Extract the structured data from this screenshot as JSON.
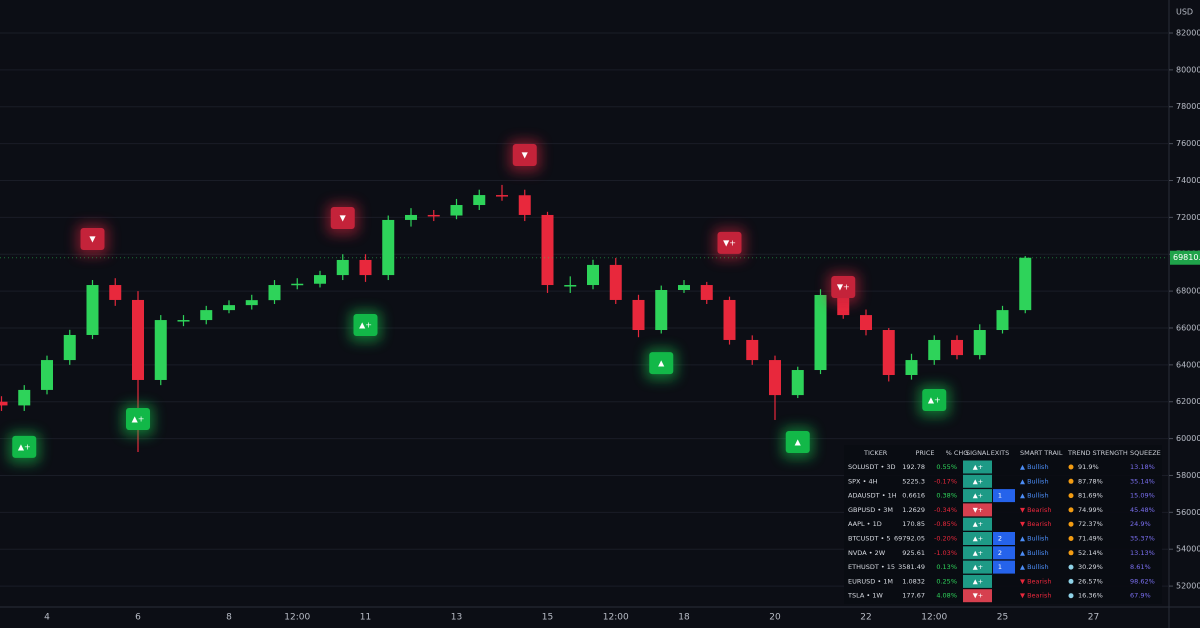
{
  "chart_data": {
    "type": "candlestick",
    "currency": "USD",
    "categories": [
      null,
      null,
      "4",
      null,
      null,
      null,
      "6",
      null,
      null,
      null,
      "8",
      null,
      null,
      "12:00",
      null,
      null,
      "11",
      null,
      null,
      null,
      "13",
      null,
      null,
      null,
      "15",
      null,
      null,
      "12:00",
      null,
      null,
      "18",
      null,
      null,
      null,
      "20",
      null,
      null,
      null,
      "22",
      null,
      null,
      "12:00",
      null,
      null,
      "25",
      null,
      null,
      null,
      "27"
    ],
    "open": [
      62000,
      61800,
      62640,
      64260,
      65620,
      68330,
      67520,
      63180,
      66430,
      66430,
      66970,
      67240,
      67510,
      68330,
      68400,
      68870,
      69690,
      68870,
      71860,
      72130,
      72100,
      72670,
      73210,
      73200,
      72130,
      68330,
      68330,
      69420,
      67520,
      65890,
      68060,
      68330,
      67520,
      65350,
      64260,
      62360,
      63720,
      67790,
      66700,
      65890,
      63450,
      64260,
      65350,
      64530,
      65890,
      66970,
      null,
      null,
      null
    ],
    "high": [
      62300,
      62900,
      64500,
      65900,
      68600,
      68700,
      68000,
      66700,
      66700,
      67200,
      67500,
      67800,
      68600,
      68700,
      69100,
      70000,
      70000,
      72100,
      72500,
      72400,
      73000,
      73500,
      73760,
      73500,
      72300,
      68800,
      69700,
      69800,
      67800,
      68300,
      68600,
      68500,
      67700,
      65600,
      64500,
      63900,
      68100,
      68000,
      67000,
      66000,
      64600,
      65600,
      65600,
      66200,
      67200,
      69900,
      null,
      null,
      null
    ],
    "low": [
      61500,
      61500,
      62400,
      64000,
      65400,
      67200,
      59270,
      62900,
      66100,
      66200,
      66800,
      67000,
      67300,
      68100,
      68200,
      68600,
      68500,
      68600,
      71500,
      71800,
      71900,
      72400,
      72900,
      71800,
      67900,
      67900,
      68100,
      67300,
      65500,
      65700,
      67900,
      67300,
      65100,
      64000,
      61010,
      62200,
      63500,
      66500,
      65600,
      63100,
      63200,
      64000,
      64300,
      64300,
      65700,
      66800,
      null,
      null,
      null
    ],
    "close": [
      61800,
      62640,
      64260,
      65620,
      68330,
      67520,
      63180,
      66430,
      66430,
      66970,
      67240,
      67510,
      68330,
      68400,
      68870,
      69690,
      68870,
      71860,
      72130,
      72100,
      72670,
      73210,
      73200,
      72130,
      68330,
      68330,
      69420,
      67520,
      65890,
      68060,
      68330,
      67520,
      65350,
      64260,
      62360,
      63720,
      67790,
      66700,
      65890,
      63450,
      64260,
      65350,
      64530,
      65890,
      66970,
      69810,
      null,
      null,
      null
    ],
    "up_color": "#2ed35a",
    "down_color": "#e8283c",
    "ylim": [
      50920,
      83790
    ],
    "yticks": [
      {
        "value": 52000,
        "label": "52000.0"
      },
      {
        "value": 54000,
        "label": "54000.0"
      },
      {
        "value": 56000,
        "label": "56000.0"
      },
      {
        "value": 58000,
        "label": "58000.0"
      },
      {
        "value": 60000,
        "label": "60000.0"
      },
      {
        "value": 62000,
        "label": "62000.0"
      },
      {
        "value": 64000,
        "label": "64000.0"
      },
      {
        "value": 66000,
        "label": "66000.0"
      },
      {
        "value": 68000,
        "label": "68000.0"
      },
      {
        "value": 70000,
        "label": "70000.0"
      },
      {
        "value": 72000,
        "label": "72000.0"
      },
      {
        "value": 74000,
        "label": "74000.0"
      },
      {
        "value": 76000,
        "label": "76000.0"
      },
      {
        "value": 78000,
        "label": "78000.0"
      },
      {
        "value": 80000,
        "label": "80000.0"
      },
      {
        "value": 82000,
        "label": "82000.0"
      }
    ],
    "grid": true,
    "last_price": {
      "value": 69810,
      "label": "69810.0"
    },
    "signals": [
      {
        "index": 1,
        "price": 59500,
        "label": "▲+",
        "side": "buy"
      },
      {
        "index": 6,
        "price": 61010,
        "label": "▲+",
        "side": "buy"
      },
      {
        "index": 16,
        "price": 66110,
        "label": "▲+",
        "side": "buy"
      },
      {
        "index": 29,
        "price": 64040,
        "label": "▲",
        "side": "buy"
      },
      {
        "index": 35,
        "price": 59760,
        "label": "▲",
        "side": "buy"
      },
      {
        "index": 41,
        "price": 62040,
        "label": "▲+",
        "side": "buy"
      },
      {
        "index": 4,
        "price": 70770,
        "label": "▼",
        "side": "sell"
      },
      {
        "index": 15,
        "price": 71910,
        "label": "▼",
        "side": "sell"
      },
      {
        "index": 23,
        "price": 75330,
        "label": "▼",
        "side": "sell"
      },
      {
        "index": 32,
        "price": 70560,
        "label": "▼+",
        "side": "sell"
      },
      {
        "index": 37,
        "price": 68170,
        "label": "▼+",
        "side": "sell"
      }
    ]
  },
  "table": {
    "header": [
      "TICKER",
      "PRICE",
      "% CHG",
      "SIGNAL",
      "EXITS",
      "SMART TRAIL",
      "TREND STRENGTH",
      "SQUEEZE"
    ],
    "rows": [
      [
        "SOLUSDT • 3D",
        "192.78",
        "0.55%",
        "▲+",
        null,
        "▲ Bullish",
        "91.9%",
        "13.18%"
      ],
      [
        "SPX • 4H",
        "5225.3",
        "-0.17%",
        "▲+",
        null,
        "▲ Bullish",
        "87.78%",
        "35.14%"
      ],
      [
        "ADAUSDT • 1H",
        "0.6616",
        "0.38%",
        "▲+",
        "1",
        "▲ Bullish",
        "81.69%",
        "15.09%"
      ],
      [
        "GBPUSD • 3M",
        "1.2629",
        "-0.34%",
        "▼+",
        null,
        "▼ Bearish",
        "74.99%",
        "45.48%"
      ],
      [
        "AAPL • 1D",
        "170.85",
        "-0.85%",
        "▲+",
        null,
        "▼ Bearish",
        "72.37%",
        "24.9%"
      ],
      [
        "BTCUSDT • 5",
        "69792.05",
        "-0.20%",
        "▲+",
        "2",
        "▲ Bullish",
        "71.49%",
        "35.37%"
      ],
      [
        "NVDA • 2W",
        "925.61",
        "-1.03%",
        "▲+",
        "2",
        "▲ Bullish",
        "52.14%",
        "13.13%"
      ],
      [
        "ETHUSDT • 15",
        "3581.49",
        "0.13%",
        "▲+",
        "1",
        "▲ Bullish",
        "30.29%",
        "8.61%"
      ],
      [
        "EURUSD • 1M",
        "1.0832",
        "0.25%",
        "▲+",
        null,
        "▼ Bearish",
        "26.57%",
        "98.62%"
      ],
      [
        "TSLA • 1W",
        "177.67",
        "4.08%",
        "▼+",
        null,
        "▼ Bearish",
        "16.36%",
        "67.9%"
      ]
    ]
  }
}
